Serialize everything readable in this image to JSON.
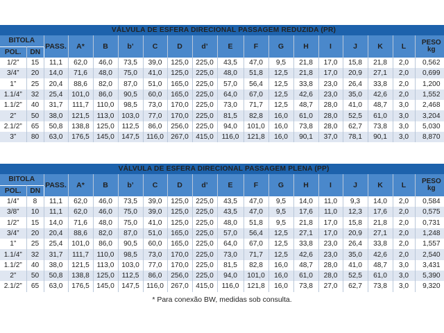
{
  "columns": [
    "PASS.",
    "A*",
    "B",
    "b’",
    "C",
    "D",
    "d’",
    "E",
    "F",
    "G",
    "H",
    "I",
    "J",
    "K",
    "L"
  ],
  "bitola_label": "BITOLA",
  "pol_label": "POL.",
  "dn_label": "DN",
  "peso_label": "PESO",
  "peso_unit": "kg",
  "tables": [
    {
      "title": "VÁLVULA DE ESFERA DIRECIONAL PASSAGEM REDUZIDA  (PR)",
      "rows": [
        [
          "1/2”",
          "15",
          "11,1",
          "62,0",
          "46,0",
          "73,5",
          "39,0",
          "125,0",
          "225,0",
          "43,5",
          "47,0",
          "9,5",
          "21,8",
          "17,0",
          "15,8",
          "21,8",
          "2,0",
          "0,562"
        ],
        [
          "3/4”",
          "20",
          "14,0",
          "71,6",
          "48,0",
          "75,0",
          "41,0",
          "125,0",
          "225,0",
          "48,0",
          "51,8",
          "12,5",
          "21,8",
          "17,0",
          "20,9",
          "27,1",
          "2,0",
          "0,699"
        ],
        [
          "1”",
          "25",
          "20,4",
          "88,6",
          "82,0",
          "87,0",
          "51,0",
          "165,0",
          "225,0",
          "57,0",
          "56,4",
          "12,5",
          "33,8",
          "23,0",
          "26,4",
          "33,8",
          "2,0",
          "1,200"
        ],
        [
          "1.1/4”",
          "32",
          "25,4",
          "101,0",
          "86,0",
          "90,5",
          "60,0",
          "165,0",
          "225,0",
          "64,0",
          "67,0",
          "12,5",
          "42,6",
          "23,0",
          "35,0",
          "42,6",
          "2,0",
          "1,552"
        ],
        [
          "1.1/2”",
          "40",
          "31,7",
          "111,7",
          "110,0",
          "98,5",
          "73,0",
          "170,0",
          "225,0",
          "73,0",
          "71,7",
          "12,5",
          "48,7",
          "28,0",
          "41,0",
          "48,7",
          "3,0",
          "2,468"
        ],
        [
          "2”",
          "50",
          "38,0",
          "121,5",
          "113,0",
          "103,0",
          "77,0",
          "170,0",
          "225,0",
          "81,5",
          "82,8",
          "16,0",
          "61,0",
          "28,0",
          "52,5",
          "61,0",
          "3,0",
          "3,204"
        ],
        [
          "2.1/2”",
          "65",
          "50,8",
          "138,8",
          "125,0",
          "112,5",
          "86,0",
          "256,0",
          "225,0",
          "94,0",
          "101,0",
          "16,0",
          "73,8",
          "28,0",
          "62,7",
          "73,8",
          "3,0",
          "5,030"
        ],
        [
          "3”",
          "80",
          "63,0",
          "176,5",
          "145,0",
          "147,5",
          "116,0",
          "267,0",
          "415,0",
          "116,0",
          "121,8",
          "16,0",
          "90,1",
          "37,0",
          "78,1",
          "90,1",
          "3,0",
          "8,870"
        ]
      ]
    },
    {
      "title": "VÁLVULA DE ESFERA DIRECIONAL PASSAGEM PLENA  (PP)",
      "rows": [
        [
          "1/4”",
          "8",
          "11,1",
          "62,0",
          "46,0",
          "73,5",
          "39,0",
          "125,0",
          "225,0",
          "43,5",
          "47,0",
          "9,5",
          "14,0",
          "11,0",
          "9,3",
          "14,0",
          "2,0",
          "0,584"
        ],
        [
          "3/8”",
          "10",
          "11,1",
          "62,0",
          "46,0",
          "75,0",
          "39,0",
          "125,0",
          "225,0",
          "43,5",
          "47,0",
          "9,5",
          "17,6",
          "11,0",
          "12,3",
          "17,6",
          "2,0",
          "0,575"
        ],
        [
          "1/2”",
          "15",
          "14,0",
          "71,6",
          "48,0",
          "75,0",
          "41,0",
          "125,0",
          "225,0",
          "48,0",
          "51,8",
          "9,5",
          "21,8",
          "17,0",
          "15,8",
          "21,8",
          "2,0",
          "0,731"
        ],
        [
          "3/4”",
          "20",
          "20,4",
          "88,6",
          "82,0",
          "87,0",
          "51,0",
          "165,0",
          "225,0",
          "57,0",
          "56,4",
          "12,5",
          "27,1",
          "17,0",
          "20,9",
          "27,1",
          "2,0",
          "1,248"
        ],
        [
          "1”",
          "25",
          "25,4",
          "101,0",
          "86,0",
          "90,5",
          "60,0",
          "165,0",
          "225,0",
          "64,0",
          "67,0",
          "12,5",
          "33,8",
          "23,0",
          "26,4",
          "33,8",
          "2,0",
          "1,557"
        ],
        [
          "1.1/4”",
          "32",
          "31,7",
          "111,7",
          "110,0",
          "98,5",
          "73,0",
          "170,0",
          "225,0",
          "73,0",
          "71,7",
          "12,5",
          "42,6",
          "23,0",
          "35,0",
          "42,6",
          "2,0",
          "2,540"
        ],
        [
          "1.1/2”",
          "40",
          "38,0",
          "121,5",
          "113,0",
          "103,0",
          "77,0",
          "170,0",
          "225,0",
          "81,5",
          "82,8",
          "16,0",
          "48,7",
          "28,0",
          "41,0",
          "48,7",
          "3,0",
          "3,431"
        ],
        [
          "2”",
          "50",
          "50,8",
          "138,8",
          "125,0",
          "112,5",
          "86,0",
          "256,0",
          "225,0",
          "94,0",
          "101,0",
          "16,0",
          "61,0",
          "28,0",
          "52,5",
          "61,0",
          "3,0",
          "5,390"
        ],
        [
          "2.1/2”",
          "65",
          "63,0",
          "176,5",
          "145,0",
          "147,5",
          "116,0",
          "267,0",
          "415,0",
          "116,0",
          "121,8",
          "16,0",
          "73,8",
          "27,0",
          "62,7",
          "73,8",
          "3,0",
          "9,320"
        ]
      ]
    }
  ],
  "footnote": "* Para conexão BW, medidas sob consulta.",
  "colors": {
    "title_bg": "#1d62ac",
    "header_bg": "#4a88cb",
    "row_alt_bg": "#dfe6f1",
    "row_bg": "#ffffff",
    "text": "#222222"
  }
}
